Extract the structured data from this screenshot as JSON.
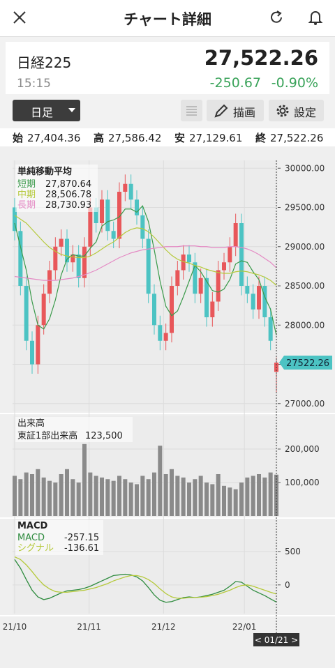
{
  "header": {
    "title": "チャート詳細"
  },
  "quote": {
    "name": "日経225",
    "time": "15:15",
    "price": "27,522.26",
    "change": "-250.67",
    "change_pct": "-0.90%"
  },
  "controls": {
    "period": "日足",
    "draw": "描画",
    "settings": "設定"
  },
  "ohlc_row": [
    {
      "label": "始",
      "value": "27,404.36"
    },
    {
      "label": "高",
      "value": "27,586.42"
    },
    {
      "label": "安",
      "value": "27,129.61"
    },
    {
      "label": "終",
      "value": "27,522.26"
    }
  ],
  "chart_data": [
    {
      "type": "candlestick",
      "title": "単純移動平均",
      "open": [
        29500,
        29200,
        28500,
        27800,
        27500,
        28000,
        28400,
        28700,
        29000,
        29100,
        28800,
        28900,
        28600,
        29000,
        29500,
        29300,
        29600,
        29200,
        29100,
        29700,
        29800,
        29600,
        29400,
        29100,
        28400,
        28000,
        27800,
        27900,
        28500,
        28700,
        28900,
        28800,
        28400,
        28600,
        28100,
        28300,
        28700,
        28800,
        29000,
        29300,
        28500,
        28400,
        28200,
        28500,
        28100,
        27404.36
      ],
      "high": [
        29620,
        29320,
        28620,
        27920,
        28120,
        28520,
        28820,
        29120,
        29220,
        29220,
        29020,
        29020,
        29120,
        29620,
        29620,
        29720,
        29720,
        29320,
        29820,
        29920,
        29920,
        29720,
        29520,
        29220,
        28520,
        28120,
        28020,
        28620,
        28820,
        29020,
        29020,
        28920,
        28720,
        28720,
        28420,
        28820,
        28920,
        29120,
        29420,
        29420,
        28620,
        28520,
        28620,
        28620,
        28220,
        27586.42
      ],
      "low": [
        29080,
        28380,
        27680,
        27380,
        27380,
        27880,
        28280,
        28580,
        28880,
        28680,
        28680,
        28480,
        28480,
        28880,
        29180,
        29180,
        29080,
        28980,
        28980,
        29580,
        29480,
        29280,
        28980,
        28280,
        27880,
        27680,
        27680,
        27780,
        28380,
        28580,
        28680,
        28280,
        28280,
        27980,
        27980,
        28180,
        28580,
        28680,
        28880,
        28380,
        28280,
        28080,
        28080,
        27980,
        27680,
        27129.61
      ],
      "close": [
        29200,
        28500,
        27800,
        27500,
        28000,
        28400,
        28700,
        29000,
        29100,
        28800,
        28900,
        28600,
        29000,
        29500,
        29300,
        29600,
        29200,
        29100,
        29700,
        29800,
        29600,
        29400,
        29100,
        28400,
        28000,
        27800,
        27900,
        28500,
        28700,
        28900,
        28800,
        28400,
        28600,
        28100,
        28300,
        28700,
        28800,
        29000,
        29300,
        28500,
        28400,
        28200,
        28500,
        28100,
        27800,
        27522.26
      ],
      "up_color": "#e8575a",
      "down_color": "#4cc3c3",
      "ma": [
        {
          "name": "短期",
          "color": "#3a9a4a",
          "legend_value": "27,870.64",
          "values": [
            29300,
            29000,
            28700,
            28300,
            28000,
            27950,
            28080,
            28320,
            28640,
            28840,
            28900,
            28880,
            28880,
            28980,
            29060,
            29260,
            29320,
            29340,
            29380,
            29480,
            29480,
            29440,
            29520,
            29320,
            28960,
            28560,
            28240,
            28120,
            28180,
            28360,
            28560,
            28760,
            28680,
            28560,
            28440,
            28420,
            28460,
            28580,
            28780,
            28820,
            28800,
            28680,
            28580,
            28360,
            28200,
            27870.64
          ]
        },
        {
          "name": "中期",
          "color": "#b5c93a",
          "legend_value": "28,506.78",
          "values": [
            29400,
            29350,
            29300,
            29220,
            29140,
            29060,
            28990,
            28940,
            28900,
            28880,
            28870,
            28860,
            28860,
            28880,
            28920,
            28970,
            29020,
            29060,
            29120,
            29180,
            29220,
            29240,
            29230,
            29190,
            29120,
            29040,
            28960,
            28890,
            28840,
            28810,
            28790,
            28760,
            28740,
            28710,
            28690,
            28670,
            28660,
            28660,
            28680,
            28690,
            28680,
            28660,
            28640,
            28610,
            28570,
            28506.78
          ]
        },
        {
          "name": "長期",
          "color": "#e48ac4",
          "legend_value": "28,730.93",
          "values": [
            28620,
            28610,
            28600,
            28590,
            28580,
            28570,
            28570,
            28570,
            28580,
            28590,
            28600,
            28620,
            28640,
            28670,
            28700,
            28740,
            28780,
            28820,
            28860,
            28890,
            28920,
            28940,
            28960,
            28970,
            28980,
            28990,
            29000,
            29000,
            29000,
            29010,
            29010,
            29010,
            29000,
            29000,
            28990,
            28990,
            28990,
            29000,
            29000,
            28990,
            28970,
            28940,
            28900,
            28850,
            28800,
            28730.93
          ]
        }
      ],
      "ylim": [
        26900,
        30100
      ],
      "yticks": [
        {
          "value": 27000,
          "label": "27000.00"
        },
        {
          "value": 27500,
          "label": "27500.00"
        },
        {
          "value": 28000,
          "label": "28000.00"
        },
        {
          "value": 28500,
          "label": "28500.00"
        },
        {
          "value": 29000,
          "label": "29000.00"
        },
        {
          "value": 29500,
          "label": "29500.00"
        },
        {
          "value": 30000,
          "label": "30000.00"
        }
      ]
    },
    {
      "type": "bar",
      "title": "出来高",
      "series_name": "東証1部出来高",
      "legend_value": "123,500",
      "color": "#8a8a8a",
      "values": [
        120000,
        110000,
        130000,
        125000,
        140000,
        115000,
        105000,
        100000,
        125000,
        140000,
        110000,
        100000,
        215000,
        130000,
        120000,
        115000,
        110000,
        105000,
        120000,
        110000,
        100000,
        95000,
        120000,
        110000,
        130000,
        210000,
        125000,
        140000,
        120000,
        115000,
        100000,
        110000,
        120000,
        100000,
        95000,
        125000,
        90000,
        85000,
        80000,
        100000,
        115000,
        120000,
        125000,
        115000,
        130000,
        123500
      ],
      "ylim": [
        0,
        300000
      ],
      "yticks": [
        {
          "value": 100000,
          "label": "100,000"
        },
        {
          "value": 200000,
          "label": "200,000"
        }
      ]
    },
    {
      "type": "line",
      "title": "MACD",
      "series": [
        {
          "name": "MACD",
          "color": "#2e8b3e",
          "legend_value": "-257.15",
          "values": [
            380,
            250,
            80,
            -80,
            -180,
            -220,
            -200,
            -160,
            -120,
            -90,
            -80,
            -70,
            -50,
            -20,
            20,
            60,
            100,
            140,
            150,
            160,
            150,
            120,
            60,
            -40,
            -150,
            -230,
            -260,
            -250,
            -220,
            -190,
            -180,
            -190,
            -180,
            -160,
            -140,
            -110,
            -80,
            -20,
            50,
            40,
            -20,
            -80,
            -120,
            -160,
            -210,
            -257.15
          ]
        },
        {
          "name": "シグナル",
          "color": "#b5c93a",
          "legend_value": "-136.61",
          "values": [
            420,
            380,
            300,
            200,
            90,
            0,
            -60,
            -100,
            -110,
            -110,
            -100,
            -90,
            -80,
            -60,
            -40,
            -10,
            20,
            60,
            90,
            120,
            140,
            140,
            120,
            80,
            20,
            -60,
            -130,
            -180,
            -200,
            -200,
            -190,
            -190,
            -185,
            -175,
            -160,
            -140,
            -110,
            -80,
            -40,
            -10,
            0,
            -20,
            -50,
            -80,
            -110,
            -136.61
          ]
        }
      ],
      "ylim": [
        -430,
        990
      ],
      "yticks": [
        0,
        500
      ],
      "xticks": [
        {
          "value": 0,
          "label": "21/10"
        },
        {
          "value": 12.8,
          "label": "21/11"
        },
        {
          "value": 25.6,
          "label": "21/12"
        },
        {
          "value": 39.5,
          "label": "22/01"
        }
      ],
      "cursor_label": "< 01/21 >"
    }
  ]
}
